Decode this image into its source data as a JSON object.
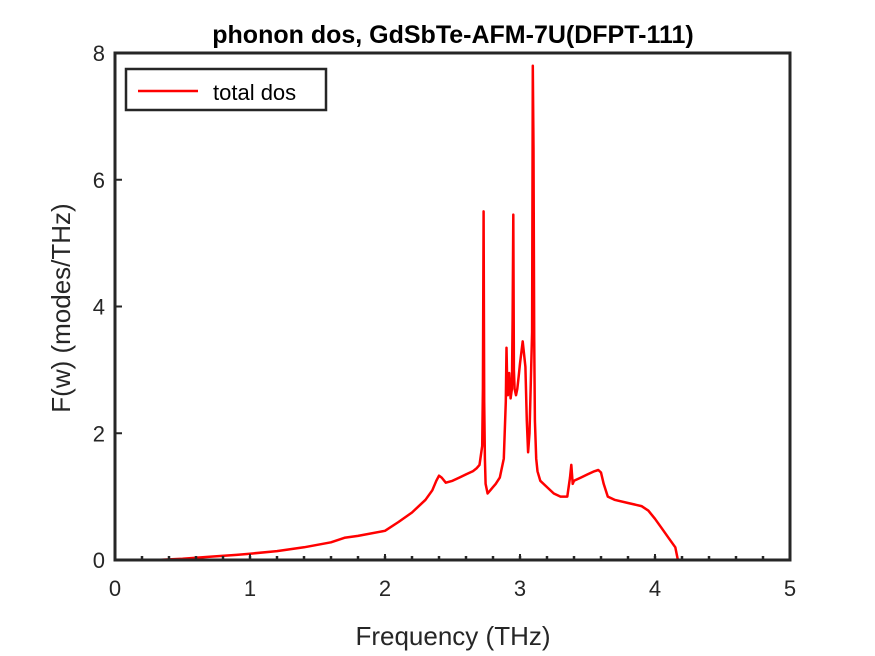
{
  "chart_data": {
    "type": "line",
    "title": "phonon dos, GdSbTe-AFM-7U(DFPT-111)",
    "xlabel": "Frequency (THz)",
    "ylabel": "F(w) (modes/THz)",
    "xlim": [
      0,
      5
    ],
    "ylim": [
      0,
      8
    ],
    "xticks": [
      "0",
      "1",
      "2",
      "3",
      "4",
      "5"
    ],
    "yticks": [
      "0",
      "2",
      "4",
      "6",
      "8"
    ],
    "grid": false,
    "legend_position": "top-left",
    "series": [
      {
        "name": "total dos",
        "color": "#ff0000",
        "x": [
          0,
          0.3,
          0.5,
          0.7,
          0.9,
          1.0,
          1.2,
          1.4,
          1.6,
          1.7,
          1.8,
          2.0,
          2.1,
          2.2,
          2.3,
          2.35,
          2.38,
          2.4,
          2.42,
          2.45,
          2.5,
          2.55,
          2.6,
          2.65,
          2.68,
          2.7,
          2.72,
          2.725,
          2.73,
          2.735,
          2.74,
          2.745,
          2.76,
          2.78,
          2.8,
          2.82,
          2.85,
          2.88,
          2.895,
          2.9,
          2.905,
          2.91,
          2.92,
          2.93,
          2.94,
          2.945,
          2.95,
          2.955,
          2.96,
          2.97,
          2.98,
          2.99,
          3.0,
          3.02,
          3.04,
          3.05,
          3.06,
          3.07,
          3.08,
          3.09,
          3.095,
          3.1,
          3.105,
          3.11,
          3.12,
          3.13,
          3.15,
          3.2,
          3.25,
          3.3,
          3.35,
          3.37,
          3.38,
          3.39,
          3.4,
          3.45,
          3.5,
          3.55,
          3.58,
          3.6,
          3.62,
          3.65,
          3.7,
          3.8,
          3.9,
          3.95,
          4.0,
          4.05,
          4.1,
          4.15,
          4.17,
          4.2,
          4.5,
          5.0
        ],
        "y": [
          0,
          0.0,
          0.02,
          0.05,
          0.08,
          0.1,
          0.14,
          0.2,
          0.28,
          0.35,
          0.38,
          0.46,
          0.6,
          0.75,
          0.95,
          1.1,
          1.25,
          1.33,
          1.3,
          1.22,
          1.25,
          1.3,
          1.35,
          1.4,
          1.45,
          1.5,
          1.8,
          2.7,
          5.5,
          2.5,
          1.6,
          1.2,
          1.05,
          1.1,
          1.15,
          1.2,
          1.3,
          1.6,
          2.5,
          3.35,
          2.8,
          2.6,
          2.95,
          2.55,
          2.7,
          3.8,
          5.45,
          3.0,
          2.7,
          2.6,
          2.7,
          2.9,
          3.1,
          3.45,
          3.05,
          2.2,
          1.7,
          2.0,
          2.8,
          3.6,
          7.8,
          6.5,
          3.5,
          2.2,
          1.6,
          1.4,
          1.25,
          1.15,
          1.05,
          1.0,
          1.0,
          1.3,
          1.5,
          1.2,
          1.25,
          1.3,
          1.35,
          1.4,
          1.42,
          1.38,
          1.2,
          1.0,
          0.95,
          0.9,
          0.85,
          0.78,
          0.65,
          0.5,
          0.35,
          0.2,
          0.0,
          0.0,
          0.0,
          0.0
        ]
      }
    ]
  }
}
